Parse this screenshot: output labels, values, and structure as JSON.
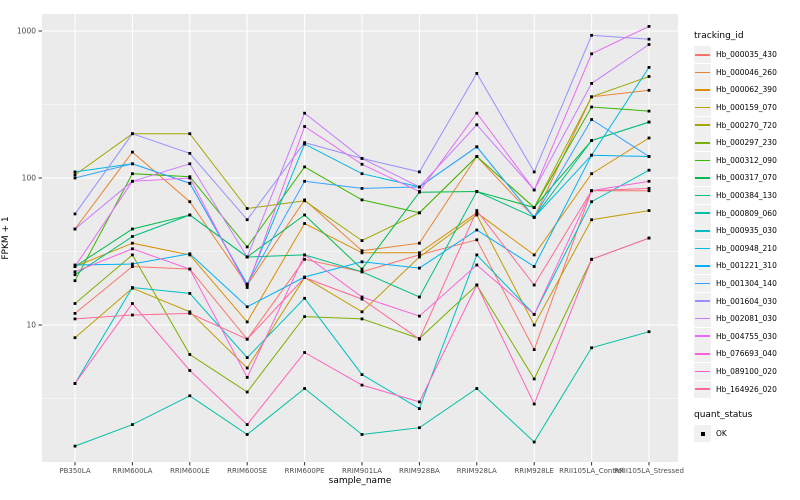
{
  "chart_data": {
    "type": "line",
    "xlabel": "sample_name",
    "ylabel": "FPKM + 1",
    "y_scale": "log10",
    "y_ticks": [
      10,
      100,
      1000
    ],
    "y_tick_labels": [
      "10",
      "100",
      "1000"
    ],
    "y_minor_ticks": [
      3.162,
      31.62,
      316.2
    ],
    "ylim": [
      1.15,
      1300
    ],
    "grid": "on",
    "legend_position": "right",
    "point_shape": "square",
    "point_color": "#000000",
    "categories": [
      "PB350LA",
      "RRIM600LA",
      "RRIM600LE",
      "RRIM600SE",
      "RRIM600PE",
      "RRIM901LA",
      "RRIM928BA",
      "RRIM928LA",
      "RRIM928LE",
      "RRII105LA_Control",
      "RRII105LA_Stressed"
    ],
    "series": [
      {
        "name": "Hb_000035_430",
        "color": "#F8766D",
        "values": [
          12,
          25,
          24,
          8,
          28,
          23,
          30,
          38,
          6.8,
          82,
          82
        ]
      },
      {
        "name": "Hb_000046_260",
        "color": "#EA8331",
        "values": [
          45,
          150,
          69,
          18.7,
          71,
          32,
          36,
          140,
          54,
          357,
          395
        ]
      },
      {
        "name": "Hb_000062_390",
        "color": "#D89000",
        "values": [
          25,
          36,
          30,
          10.5,
          49,
          31,
          31,
          58,
          30,
          107,
          187
        ]
      },
      {
        "name": "Hb_000159_070",
        "color": "#C09B00",
        "values": [
          8.2,
          17.8,
          12.3,
          5.1,
          21,
          12.3,
          29,
          56,
          10,
          52,
          60
        ]
      },
      {
        "name": "Hb_000270_720",
        "color": "#A3A500",
        "values": [
          105,
          200,
          200,
          62,
          70,
          37.5,
          58,
          140,
          63,
          357,
          490
        ]
      },
      {
        "name": "Hb_000297_230",
        "color": "#7CAE00",
        "values": [
          14,
          30,
          6.3,
          3.5,
          11.4,
          11,
          8.1,
          18.7,
          4.3,
          28,
          39
        ]
      },
      {
        "name": "Hb_000312_090",
        "color": "#39B600",
        "values": [
          20,
          107,
          102,
          34,
          119,
          71,
          58,
          140,
          63,
          304,
          285
        ]
      },
      {
        "name": "Hb_000317_070",
        "color": "#00BB4E",
        "values": [
          25,
          45,
          56,
          29,
          56,
          24,
          80,
          81,
          63,
          180,
          240
        ]
      },
      {
        "name": "Hb_000384_130",
        "color": "#00BF7D",
        "values": [
          22,
          40,
          56,
          29,
          30,
          23,
          15.5,
          81,
          54,
          180,
          240
        ]
      },
      {
        "name": "Hb_000809_060",
        "color": "#00C1A3",
        "values": [
          1.5,
          2.1,
          3.3,
          1.8,
          3.7,
          1.8,
          2.0,
          3.7,
          1.6,
          7.0,
          9.0
        ]
      },
      {
        "name": "Hb_000935_030",
        "color": "#00BFC4",
        "values": [
          4.0,
          18,
          16.4,
          6.0,
          15.2,
          4.6,
          2.7,
          30,
          11.8,
          69,
          113
        ]
      },
      {
        "name": "Hb_000948_210",
        "color": "#00BAE0",
        "values": [
          110,
          125,
          92,
          18.7,
          170,
          107,
          87,
          163,
          54,
          143,
          565
        ]
      },
      {
        "name": "Hb_001221_310",
        "color": "#00B0F6",
        "values": [
          25.6,
          26,
          30.5,
          13.3,
          21.2,
          26.9,
          24.4,
          44.3,
          25,
          143,
          140
        ]
      },
      {
        "name": "Hb_001304_140",
        "color": "#35A2FF",
        "values": [
          100,
          125,
          92,
          19,
          95,
          85,
          87,
          163,
          54,
          250,
          140
        ]
      },
      {
        "name": "Hb_001604_030",
        "color": "#9590FF",
        "values": [
          57,
          200,
          147,
          52,
          174,
          136,
          110,
          515,
          110,
          935,
          880
        ]
      },
      {
        "name": "Hb_002081_030",
        "color": "#C77CFF",
        "values": [
          45,
          95,
          125,
          29,
          276,
          136,
          87,
          230,
          83,
          440,
          810
        ]
      },
      {
        "name": "Hb_004755_030",
        "color": "#E76BF3",
        "values": [
          25,
          95,
          100,
          18,
          224,
          124,
          81,
          276,
          83,
          700,
          1075
        ]
      },
      {
        "name": "Hb_076693_040",
        "color": "#FA62DB",
        "values": [
          23,
          33,
          24,
          4.4,
          30,
          15.5,
          11.5,
          25.6,
          11.8,
          82,
          95
        ]
      },
      {
        "name": "Hb_089100_020",
        "color": "#FF62BC",
        "values": [
          4.0,
          14,
          4.9,
          2.1,
          6.5,
          3.9,
          3.0,
          18.7,
          2.9,
          28,
          39
        ]
      },
      {
        "name": "Hb_164926_020",
        "color": "#FF6A98",
        "values": [
          11,
          11.7,
          12,
          8,
          21,
          15,
          8,
          60,
          18.7,
          82,
          85
        ]
      }
    ]
  },
  "legend": {
    "tracking_title": "tracking_id",
    "quant_title": "quant_status",
    "quant_value": "OK"
  },
  "colors": {
    "panel_bg": "#EBEBEB",
    "grid": "#FFFFFF",
    "axis_text": "#4D4D4D",
    "tick_mark": "#333333"
  }
}
